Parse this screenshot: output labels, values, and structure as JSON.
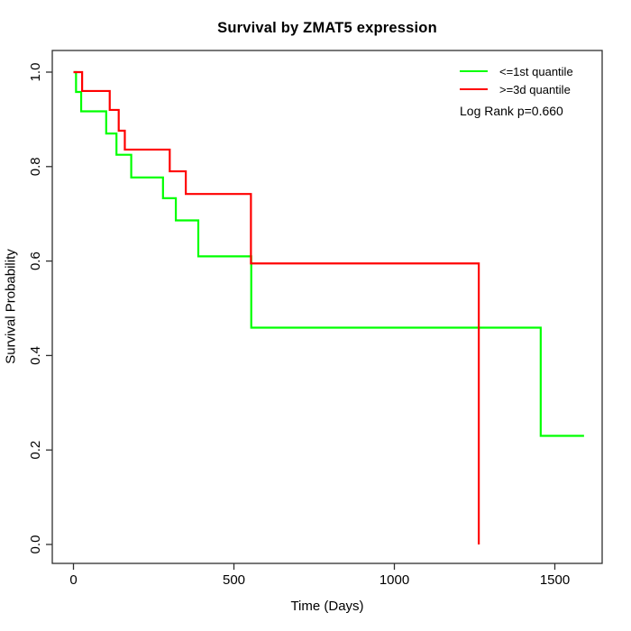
{
  "chart_data": {
    "type": "line",
    "subtype": "kaplan_meier_step_curves",
    "title": "Survival by ZMAT5 expression",
    "xlabel": "Time (Days)",
    "ylabel": "Survival Probability",
    "xlim": [
      0,
      1600
    ],
    "ylim": [
      0.0,
      1.0
    ],
    "x_ticks": [
      "0",
      "500",
      "1000",
      "1500"
    ],
    "y_ticks": [
      "0.0",
      "0.2",
      "0.4",
      "0.6",
      "0.8",
      "1.0"
    ],
    "grid": false,
    "legend_position": "top-right",
    "series": [
      {
        "name": "<=1st quantile",
        "color": "#00FF00",
        "steps": [
          [
            0,
            1.0
          ],
          [
            8,
            0.958
          ],
          [
            24,
            0.917
          ],
          [
            102,
            0.87
          ],
          [
            134,
            0.825
          ],
          [
            180,
            0.777
          ],
          [
            279,
            0.733
          ],
          [
            319,
            0.686
          ],
          [
            389,
            0.61
          ],
          [
            554,
            0.459
          ],
          [
            1456,
            0.23
          ]
        ],
        "end_time": 1591
      },
      {
        "name": ">=3d quantile",
        "color": "#FF0000",
        "steps": [
          [
            0,
            1.0
          ],
          [
            27,
            0.96
          ],
          [
            113,
            0.92
          ],
          [
            141,
            0.876
          ],
          [
            160,
            0.836
          ],
          [
            300,
            0.79
          ],
          [
            350,
            0.742
          ],
          [
            553,
            0.595
          ],
          [
            1263,
            0.0
          ]
        ],
        "end_time": 1263
      }
    ]
  },
  "annotation": {
    "log_rank_text": "Log Rank p=0.660"
  }
}
